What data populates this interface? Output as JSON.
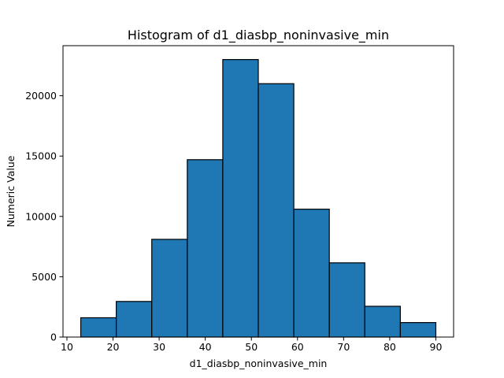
{
  "chart_data": {
    "type": "bar",
    "title": "Histogram of d1_diasbp_noninvasive_min",
    "xlabel": "d1_diasbp_noninvasive_min",
    "ylabel": "Numeric Value",
    "bin_edges": [
      13,
      20.7,
      28.4,
      36.1,
      43.8,
      51.5,
      59.2,
      66.9,
      74.6,
      82.3,
      90
    ],
    "values": [
      1600,
      2950,
      8100,
      14700,
      23000,
      21000,
      10600,
      6150,
      2550,
      1200
    ],
    "xlim": [
      9.15,
      93.85
    ],
    "ylim": [
      0,
      24150
    ],
    "x_ticks": [
      10,
      20,
      30,
      40,
      50,
      60,
      70,
      80,
      90
    ],
    "y_ticks": [
      0,
      5000,
      10000,
      15000,
      20000
    ],
    "bar_color": "#1f77b4",
    "edge_color": "#000000",
    "grid": false,
    "legend": "none"
  }
}
